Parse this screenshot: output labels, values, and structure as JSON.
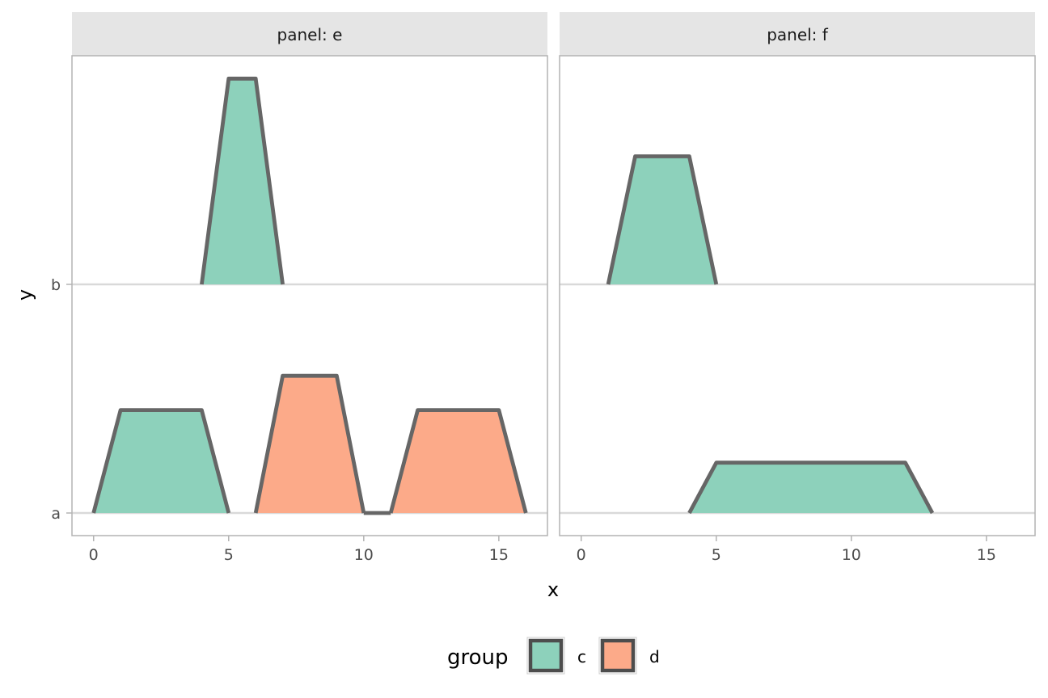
{
  "chart_data": {
    "type": "ridgeline",
    "facet_prefix": "panel: ",
    "panels": [
      {
        "name": "e",
        "label": "panel: e",
        "ridges": [
          {
            "y": "b",
            "group": "c",
            "points": [
              [
                4,
                0
              ],
              [
                5,
                0.9
              ],
              [
                6,
                0.9
              ],
              [
                7,
                0
              ]
            ]
          },
          {
            "y": "a",
            "group": "c",
            "points": [
              [
                0,
                0
              ],
              [
                1,
                0.45
              ],
              [
                4,
                0.45
              ],
              [
                5,
                0
              ]
            ]
          },
          {
            "y": "a",
            "group": "d",
            "points": [
              [
                6,
                0
              ],
              [
                7,
                0.6
              ],
              [
                9,
                0.6
              ],
              [
                10,
                0
              ]
            ]
          },
          {
            "y": "a",
            "group": null,
            "points": [
              [
                10,
                0
              ],
              [
                11,
                0
              ]
            ]
          },
          {
            "y": "a",
            "group": "d",
            "points": [
              [
                11,
                0
              ],
              [
                12,
                0.45
              ],
              [
                15,
                0.45
              ],
              [
                16,
                0
              ]
            ]
          }
        ]
      },
      {
        "name": "f",
        "label": "panel: f",
        "ridges": [
          {
            "y": "b",
            "group": "c",
            "points": [
              [
                1,
                0
              ],
              [
                2,
                0.56
              ],
              [
                4,
                0.56
              ],
              [
                5,
                0
              ]
            ]
          },
          {
            "y": "a",
            "group": "c",
            "points": [
              [
                4,
                0
              ],
              [
                5,
                0.22
              ],
              [
                12,
                0.22
              ],
              [
                13,
                0
              ]
            ]
          }
        ]
      }
    ],
    "x_ticks": [
      0,
      5,
      10,
      15
    ],
    "x_tick_labels": [
      "0",
      "5",
      "10",
      "15"
    ],
    "xlim": [
      -0.8,
      16.8
    ],
    "y_categories": [
      "a",
      "b"
    ],
    "xlabel": "x",
    "ylabel": "y",
    "legend": {
      "title": "group",
      "position": "bottom",
      "entries": [
        {
          "key": "c",
          "label": "c",
          "color": "#8DD1BB"
        },
        {
          "key": "d",
          "label": "d",
          "color": "#FCAA89"
        }
      ]
    },
    "colors": {
      "outline": "#666666",
      "strip_bg": "#E5E5E5",
      "panel_border": "#B3B3B3",
      "grid": "#D9D9D9"
    }
  }
}
